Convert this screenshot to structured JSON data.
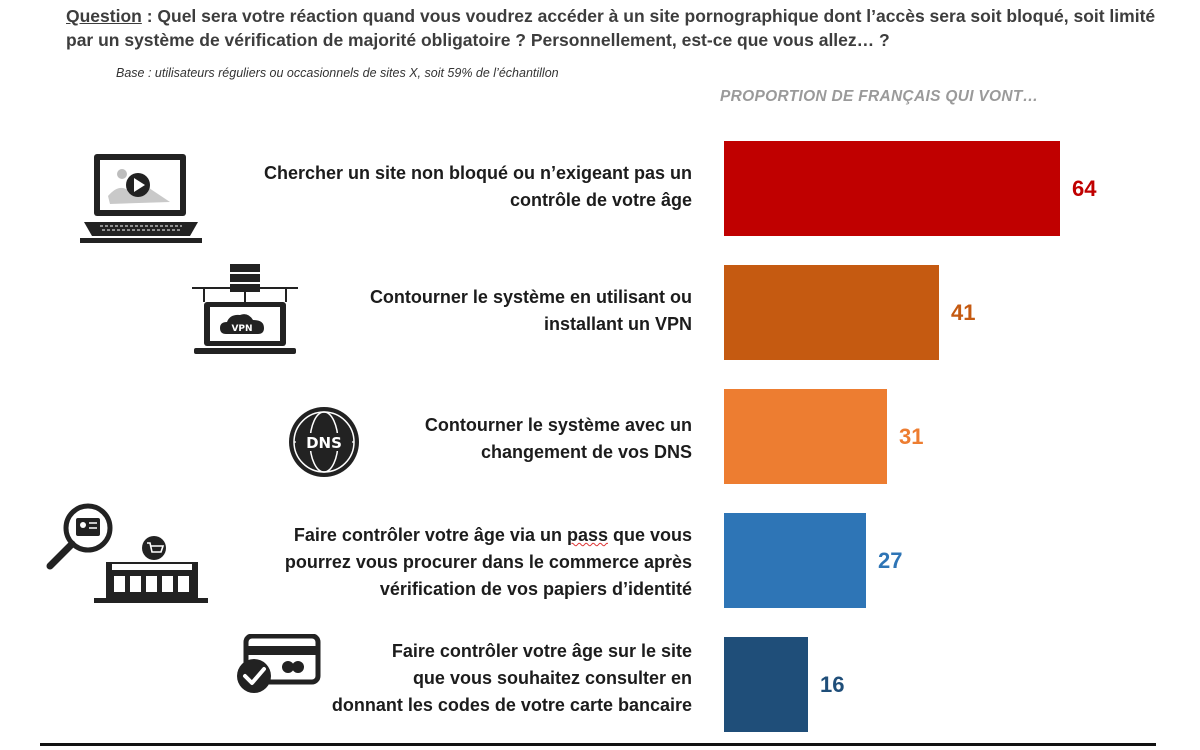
{
  "question": {
    "label": "Question",
    "text": " : Quel sera votre réaction quand vous voudrez accéder à un site pornographique dont l’accès sera soit bloqué, soit limité par un système de vérification de majorité obligatoire ? Personnellement, est-ce que vous allez… ?"
  },
  "base": "Base : utilisateurs réguliers ou occasionnels de sites X, soit 59% de l’échantillon",
  "chart_data": {
    "type": "bar",
    "orientation": "horizontal",
    "title": "PROPORTION DE FRANÇAIS QUI VONT…",
    "xlim": [
      0,
      64
    ],
    "categories": [
      "Chercher un site non bloqué ou n’exigeant pas un contrôle de votre âge",
      "Contourner le système en utilisant ou installant un VPN",
      "Contourner le système avec un changement de vos DNS",
      "Faire contrôler votre âge via un pass que vous pourrez vous procurer dans le commerce après vérification de vos papiers d’identité",
      "Faire contrôler votre âge sur le site que vous souhaitez consulter en donnant les codes de votre carte bancaire"
    ],
    "values": [
      64,
      41,
      31,
      27,
      16
    ],
    "colors": [
      "#c00000",
      "#c55a11",
      "#ed7d31",
      "#2e75b6",
      "#1f4e79"
    ]
  },
  "rows": [
    {
      "lines": [
        "Chercher un site non bloqué ou n’exigeant pas un",
        "contrôle de votre âge"
      ],
      "value_label": "64",
      "icon": "laptop-video-icon"
    },
    {
      "lines": [
        "Contourner le système en utilisant ou",
        "installant un VPN"
      ],
      "value_label": "41",
      "icon": "vpn-laptop-icon"
    },
    {
      "lines": [
        "Contourner le système avec un",
        "changement de vos DNS"
      ],
      "value_label": "31",
      "icon": "dns-globe-icon"
    },
    {
      "lines": [
        "Faire contrôler votre âge via un pass que vous",
        "pourrez vous procurer dans le commerce après",
        "vérification de vos papiers d’identité"
      ],
      "value_label": "27",
      "icon": "id-check-store-icon"
    },
    {
      "lines": [
        "Faire contrôler votre âge sur le site",
        "que vous souhaitez consulter en",
        "donnant les codes de votre carte bancaire"
      ],
      "value_label": "16",
      "icon": "credit-card-check-icon"
    }
  ]
}
